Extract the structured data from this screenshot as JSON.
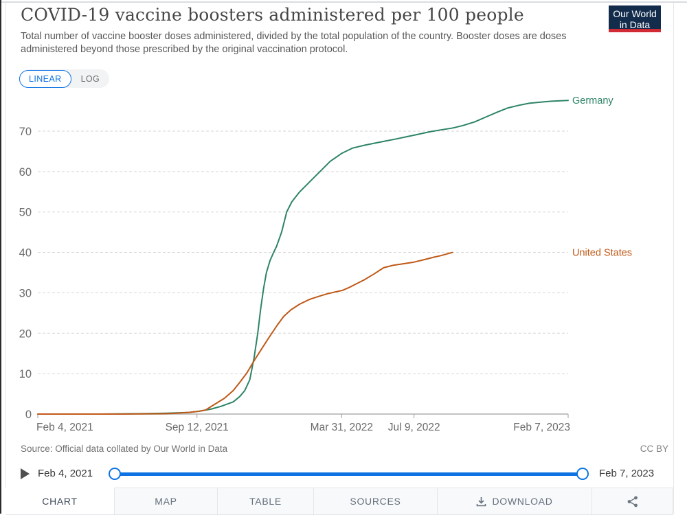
{
  "header": {
    "title": "COVID-19 vaccine boosters administered per 100 people",
    "subtitle": "Total number of vaccine booster doses administered, divided by the total population of the country. Booster doses are doses administered beyond those prescribed by the original vaccination protocol.",
    "logo": {
      "line1": "Our World",
      "line2": "in Data",
      "bg_color": "#132c4c",
      "stripe_color": "#d02a35"
    }
  },
  "controls": {
    "linear_label": "LINEAR",
    "log_label": "LOG",
    "accent_color": "#0d73e3"
  },
  "chart_data": {
    "type": "line",
    "title": "COVID-19 vaccine boosters administered per 100 people",
    "xlabel": "",
    "ylabel": "",
    "x_type": "date",
    "x_range": [
      "2021-02-04",
      "2023-02-07"
    ],
    "ylim": [
      0,
      78.5
    ],
    "yticks": [
      0,
      10,
      20,
      30,
      40,
      50,
      60,
      70
    ],
    "grid": true,
    "legend_position": "end-of-line-labels",
    "xticks": [
      {
        "label": "Feb 4, 2021",
        "date": "2021-02-04",
        "anchor": "start"
      },
      {
        "label": "Sep 12, 2021",
        "date": "2021-09-12",
        "anchor": "mid"
      },
      {
        "label": "Mar 31, 2022",
        "date": "2022-03-31",
        "anchor": "mid"
      },
      {
        "label": "Jul 9, 2022",
        "date": "2022-07-09",
        "anchor": "mid"
      },
      {
        "label": "Feb 7, 2023",
        "date": "2023-02-07",
        "anchor": "end"
      }
    ],
    "series": [
      {
        "name": "Germany",
        "color": "#2c8465",
        "points": [
          [
            "2021-02-04",
            0
          ],
          [
            "2021-05-01",
            0
          ],
          [
            "2021-07-01",
            0.1
          ],
          [
            "2021-08-01",
            0.2
          ],
          [
            "2021-09-01",
            0.4
          ],
          [
            "2021-09-15",
            0.7
          ],
          [
            "2021-10-01",
            1.2
          ],
          [
            "2021-10-15",
            1.9
          ],
          [
            "2021-11-01",
            3.0
          ],
          [
            "2021-11-10",
            4.3
          ],
          [
            "2021-11-17",
            5.8
          ],
          [
            "2021-11-24",
            8.5
          ],
          [
            "2021-11-30",
            14.0
          ],
          [
            "2021-12-05",
            20.0
          ],
          [
            "2021-12-09",
            26.0
          ],
          [
            "2021-12-13",
            31.0
          ],
          [
            "2021-12-17",
            35.0
          ],
          [
            "2021-12-22",
            38.0
          ],
          [
            "2021-12-27",
            40.0
          ],
          [
            "2021-12-31",
            41.5
          ],
          [
            "2022-01-07",
            45.0
          ],
          [
            "2022-01-14",
            50.0
          ],
          [
            "2022-01-21",
            52.5
          ],
          [
            "2022-02-01",
            55.0
          ],
          [
            "2022-02-15",
            57.5
          ],
          [
            "2022-03-01",
            60.0
          ],
          [
            "2022-03-15",
            62.5
          ],
          [
            "2022-03-31",
            64.5
          ],
          [
            "2022-04-15",
            65.8
          ],
          [
            "2022-05-01",
            66.5
          ],
          [
            "2022-05-15",
            67.0
          ],
          [
            "2022-06-01",
            67.6
          ],
          [
            "2022-06-15",
            68.1
          ],
          [
            "2022-07-01",
            68.7
          ],
          [
            "2022-07-09",
            69.0
          ],
          [
            "2022-08-01",
            69.9
          ],
          [
            "2022-08-15",
            70.3
          ],
          [
            "2022-09-01",
            70.8
          ],
          [
            "2022-09-15",
            71.4
          ],
          [
            "2022-10-01",
            72.3
          ],
          [
            "2022-10-15",
            73.4
          ],
          [
            "2022-11-01",
            74.7
          ],
          [
            "2022-11-15",
            75.7
          ],
          [
            "2022-12-01",
            76.4
          ],
          [
            "2022-12-15",
            76.9
          ],
          [
            "2023-01-01",
            77.2
          ],
          [
            "2023-01-15",
            77.4
          ],
          [
            "2023-02-07",
            77.6
          ]
        ]
      },
      {
        "name": "United States",
        "color": "#bf5917",
        "points": [
          [
            "2021-02-04",
            0
          ],
          [
            "2021-06-01",
            0
          ],
          [
            "2021-08-01",
            0.1
          ],
          [
            "2021-08-15",
            0.2
          ],
          [
            "2021-09-01",
            0.4
          ],
          [
            "2021-09-15",
            0.7
          ],
          [
            "2021-09-24",
            1.0
          ],
          [
            "2021-10-01",
            1.8
          ],
          [
            "2021-10-10",
            2.8
          ],
          [
            "2021-10-20",
            3.9
          ],
          [
            "2021-11-01",
            5.8
          ],
          [
            "2021-11-10",
            7.8
          ],
          [
            "2021-11-20",
            10.2
          ],
          [
            "2021-12-01",
            13.5
          ],
          [
            "2021-12-10",
            16.0
          ],
          [
            "2021-12-20",
            18.8
          ],
          [
            "2022-01-01",
            22.0
          ],
          [
            "2022-01-10",
            24.2
          ],
          [
            "2022-01-20",
            25.8
          ],
          [
            "2022-02-01",
            27.2
          ],
          [
            "2022-02-15",
            28.4
          ],
          [
            "2022-03-01",
            29.2
          ],
          [
            "2022-03-12",
            29.8
          ],
          [
            "2022-03-22",
            30.2
          ],
          [
            "2022-04-01",
            30.6
          ],
          [
            "2022-04-10",
            31.3
          ],
          [
            "2022-04-20",
            32.2
          ],
          [
            "2022-05-01",
            33.2
          ],
          [
            "2022-05-15",
            34.7
          ],
          [
            "2022-05-28",
            36.2
          ],
          [
            "2022-06-10",
            36.8
          ],
          [
            "2022-06-25",
            37.2
          ],
          [
            "2022-07-09",
            37.6
          ],
          [
            "2022-07-25",
            38.3
          ],
          [
            "2022-08-05",
            38.8
          ],
          [
            "2022-08-15",
            39.2
          ],
          [
            "2022-08-23",
            39.6
          ],
          [
            "2022-08-31",
            40.0
          ]
        ]
      }
    ]
  },
  "footer": {
    "source": "Source: Official data collated by Our World in Data",
    "license": "CC BY"
  },
  "timeline": {
    "start_label": "Feb 4, 2021",
    "end_label": "Feb 7, 2023",
    "track_color": "#0d73e3"
  },
  "tabs": [
    {
      "label": "CHART",
      "active": true
    },
    {
      "label": "MAP",
      "active": false
    },
    {
      "label": "TABLE",
      "active": false
    },
    {
      "label": "SOURCES",
      "active": false
    },
    {
      "label": "DOWNLOAD",
      "active": false
    }
  ]
}
